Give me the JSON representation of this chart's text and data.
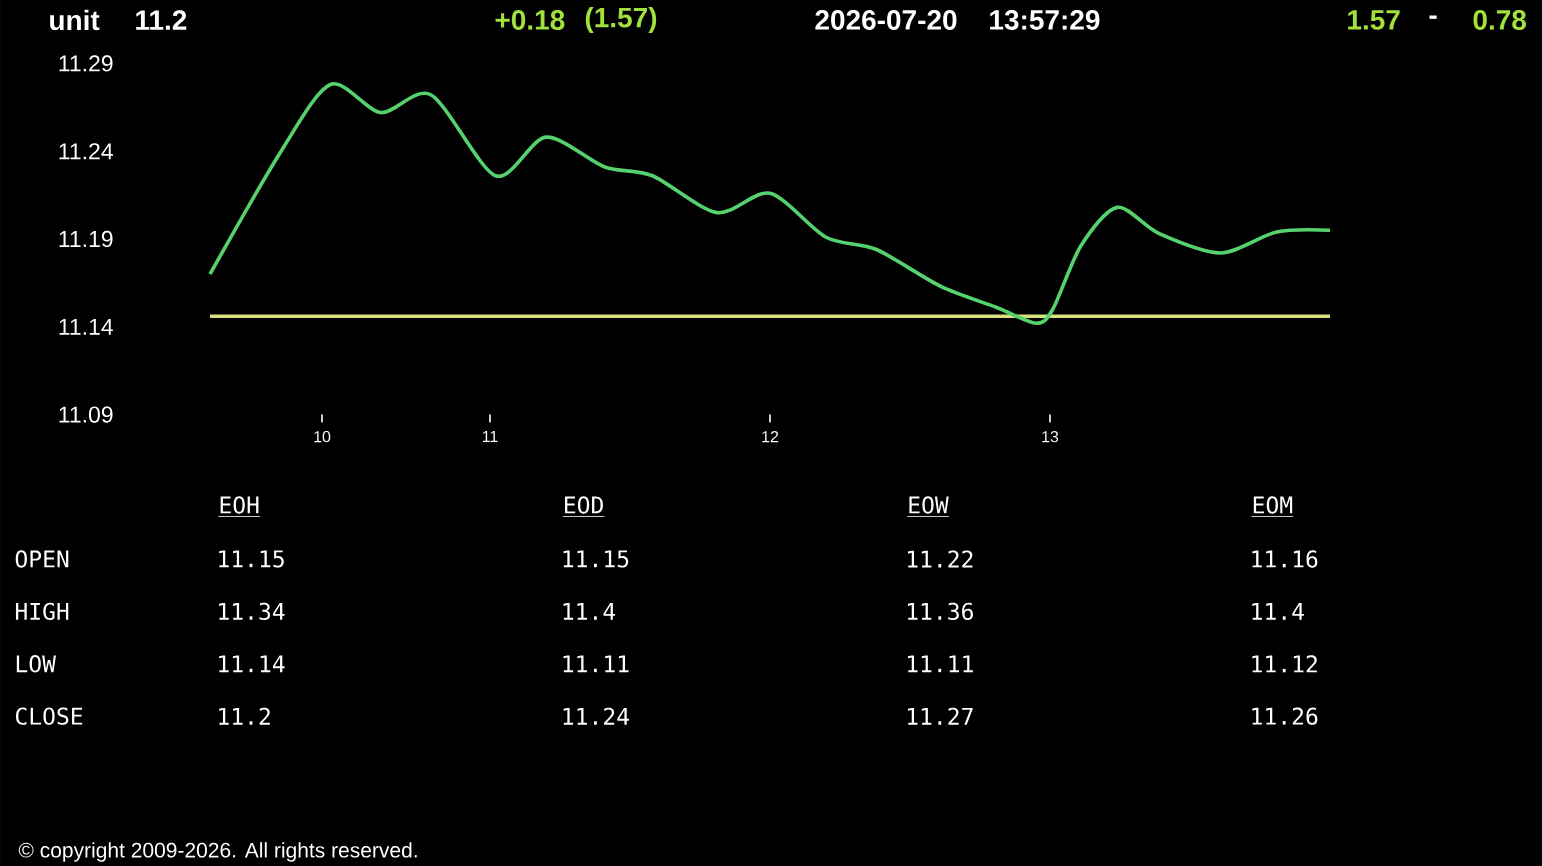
{
  "chart_data": [
    {
      "type": "line",
      "annotations": [
        "unit",
        "11.2",
        "+0.18",
        "(1.57)",
        "2026-07-20",
        "13:57:29",
        "1.57",
        "-",
        "0.78",
        "© copyright 2009-2026. All rights reserved."
      ],
      "x": [
        10.0,
        10.25,
        10.43,
        10.61,
        10.79,
        11.02,
        11.2,
        11.41,
        11.58,
        11.81,
        12.0,
        12.2,
        12.38,
        12.61,
        12.81,
        12.95,
        13.01,
        13.11,
        13.24,
        13.39,
        13.61,
        13.81,
        14.0
      ],
      "values": [
        11.17,
        11.239,
        11.278,
        11.262,
        11.272,
        11.226,
        11.248,
        11.231,
        11.226,
        11.205,
        11.216,
        11.191,
        11.184,
        11.163,
        11.151,
        11.142,
        11.15,
        11.186,
        11.208,
        11.193,
        11.182,
        11.194,
        11.195
      ],
      "color": "#55d26e",
      "xlim": [
        10,
        14
      ],
      "xticks": [
        {
          "value": 10.4,
          "label": "10"
        },
        11,
        12,
        13
      ],
      "ylim": [
        11.09,
        11.29
      ],
      "yticks": [
        11.09,
        11.14,
        11.19,
        11.24,
        11.29
      ],
      "ref_lines": [
        {
          "axis": "y",
          "value": 11.146,
          "color": "#d9e27c"
        }
      ]
    },
    {
      "type": "other",
      "categories": [
        "EOH",
        "EOD",
        "EOW",
        "EOM"
      ],
      "y_categories": [
        "OPEN",
        "HIGH",
        "LOW",
        "CLOSE"
      ],
      "cell_labels": [
        [
          "11.15",
          "11.15",
          "11.22",
          "11.16"
        ],
        [
          "11.34",
          "11.4",
          "11.36",
          "11.4"
        ],
        [
          "11.14",
          "11.11",
          "11.11",
          "11.12"
        ],
        [
          "11.2",
          "11.24",
          "11.27",
          "11.26"
        ]
      ]
    }
  ]
}
